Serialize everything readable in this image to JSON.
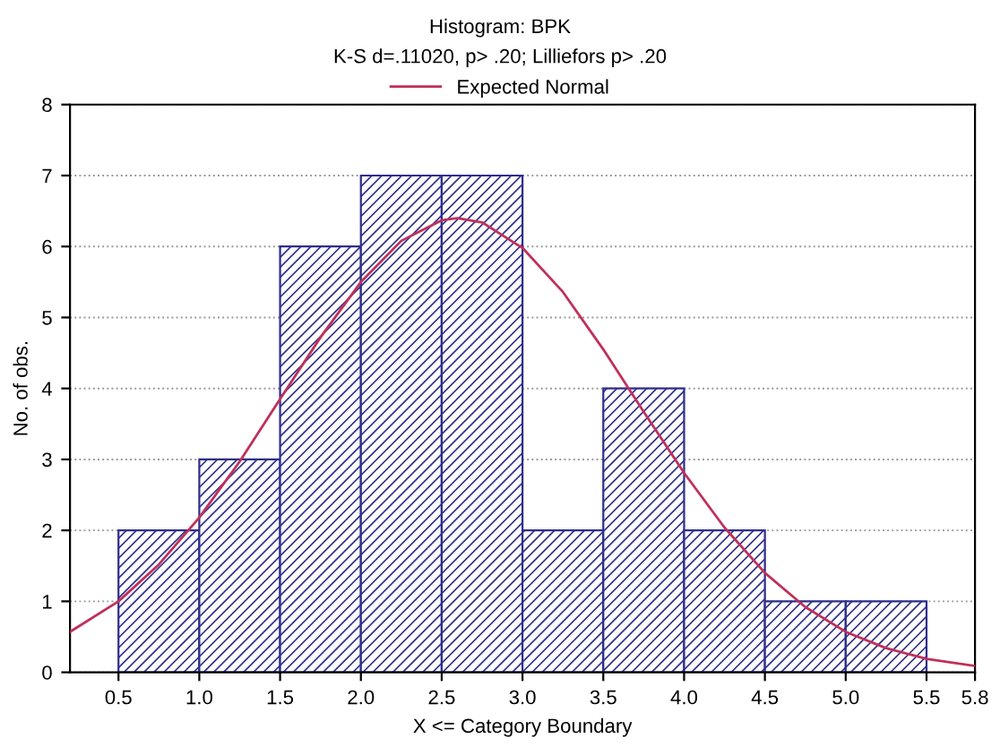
{
  "chart_data": {
    "type": "histogram",
    "title": "Histogram: BPK",
    "subtitle": "K-S d=.11020, p> .20; Lilliefors p> .20",
    "xlabel": "X <= Category Boundary",
    "ylabel": "No. of obs.",
    "bins": [
      0.5,
      1.0,
      1.5,
      2.0,
      2.5,
      3.0,
      3.5,
      4.0,
      4.5,
      5.0,
      5.5
    ],
    "series": [
      {
        "color": "#2e2e8c",
        "values": [
          2,
          3,
          6,
          7,
          7,
          2,
          4,
          2,
          1,
          1
        ]
      },
      {
        "type": "line",
        "name": "Expected Normal",
        "color": "#c0305a",
        "x": [
          0.2,
          0.5,
          0.75,
          1.0,
          1.25,
          1.5,
          1.75,
          2.0,
          2.25,
          2.5,
          2.6,
          2.75,
          3.0,
          3.25,
          3.5,
          3.75,
          4.0,
          4.25,
          4.5,
          4.75,
          5.0,
          5.25,
          5.5,
          5.8
        ],
        "values": [
          0.57,
          1.0,
          1.52,
          2.18,
          2.97,
          3.85,
          4.72,
          5.5,
          6.08,
          6.37,
          6.4,
          6.34,
          5.98,
          5.36,
          4.55,
          3.67,
          2.81,
          2.04,
          1.4,
          0.92,
          0.57,
          0.34,
          0.19,
          0.09
        ]
      }
    ],
    "xlim": [
      0.2,
      5.8
    ],
    "xticks": [
      0.5,
      {
        "value": 1,
        "label": "1.0"
      },
      1.5,
      {
        "value": 2,
        "label": "2.0"
      },
      2.5,
      {
        "value": 3,
        "label": "3.0"
      },
      3.5,
      {
        "value": 4,
        "label": "4.0"
      },
      4.5,
      {
        "value": 5,
        "label": "5.0"
      },
      5.5,
      5.8
    ],
    "ylim": [
      0,
      8
    ],
    "yticks": [
      0,
      1,
      2,
      3,
      4,
      5,
      6,
      7,
      8
    ],
    "grid": "y",
    "legend": "top"
  }
}
